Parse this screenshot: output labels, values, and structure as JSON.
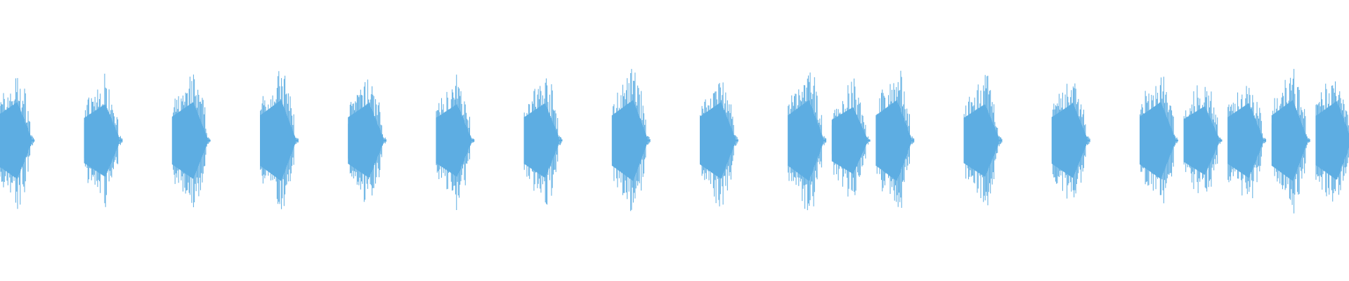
{
  "chart_data": {
    "type": "area",
    "subtype": "audio-waveform",
    "title": "",
    "xlabel": "",
    "ylabel": "",
    "axes_visible": false,
    "grid": false,
    "ylim": [
      -1,
      1
    ],
    "x_unit": "beats",
    "xlim": [
      0,
      15.3
    ],
    "color": "#5DADE2",
    "background": "#FFFFFF",
    "burst_duration_beats": 0.43,
    "bursts": [
      {
        "onset": 0,
        "peak": 0.38
      },
      {
        "onset": 1,
        "peak": 0.36
      },
      {
        "onset": 2,
        "peak": 0.38
      },
      {
        "onset": 3,
        "peak": 0.4
      },
      {
        "onset": 4,
        "peak": 0.37
      },
      {
        "onset": 5,
        "peak": 0.36
      },
      {
        "onset": 6,
        "peak": 0.37
      },
      {
        "onset": 7,
        "peak": 0.4
      },
      {
        "onset": 8,
        "peak": 0.38
      },
      {
        "onset": 9,
        "peak": 0.4
      },
      {
        "onset": 9.5,
        "peak": 0.33
      },
      {
        "onset": 10,
        "peak": 0.4
      },
      {
        "onset": 11,
        "peak": 0.36
      },
      {
        "onset": 12,
        "peak": 0.37
      },
      {
        "onset": 13,
        "peak": 0.38
      },
      {
        "onset": 13.5,
        "peak": 0.34
      },
      {
        "onset": 14,
        "peak": 0.37
      },
      {
        "onset": 14.5,
        "peak": 0.4
      },
      {
        "onset": 15,
        "peak": 0.39
      }
    ]
  }
}
